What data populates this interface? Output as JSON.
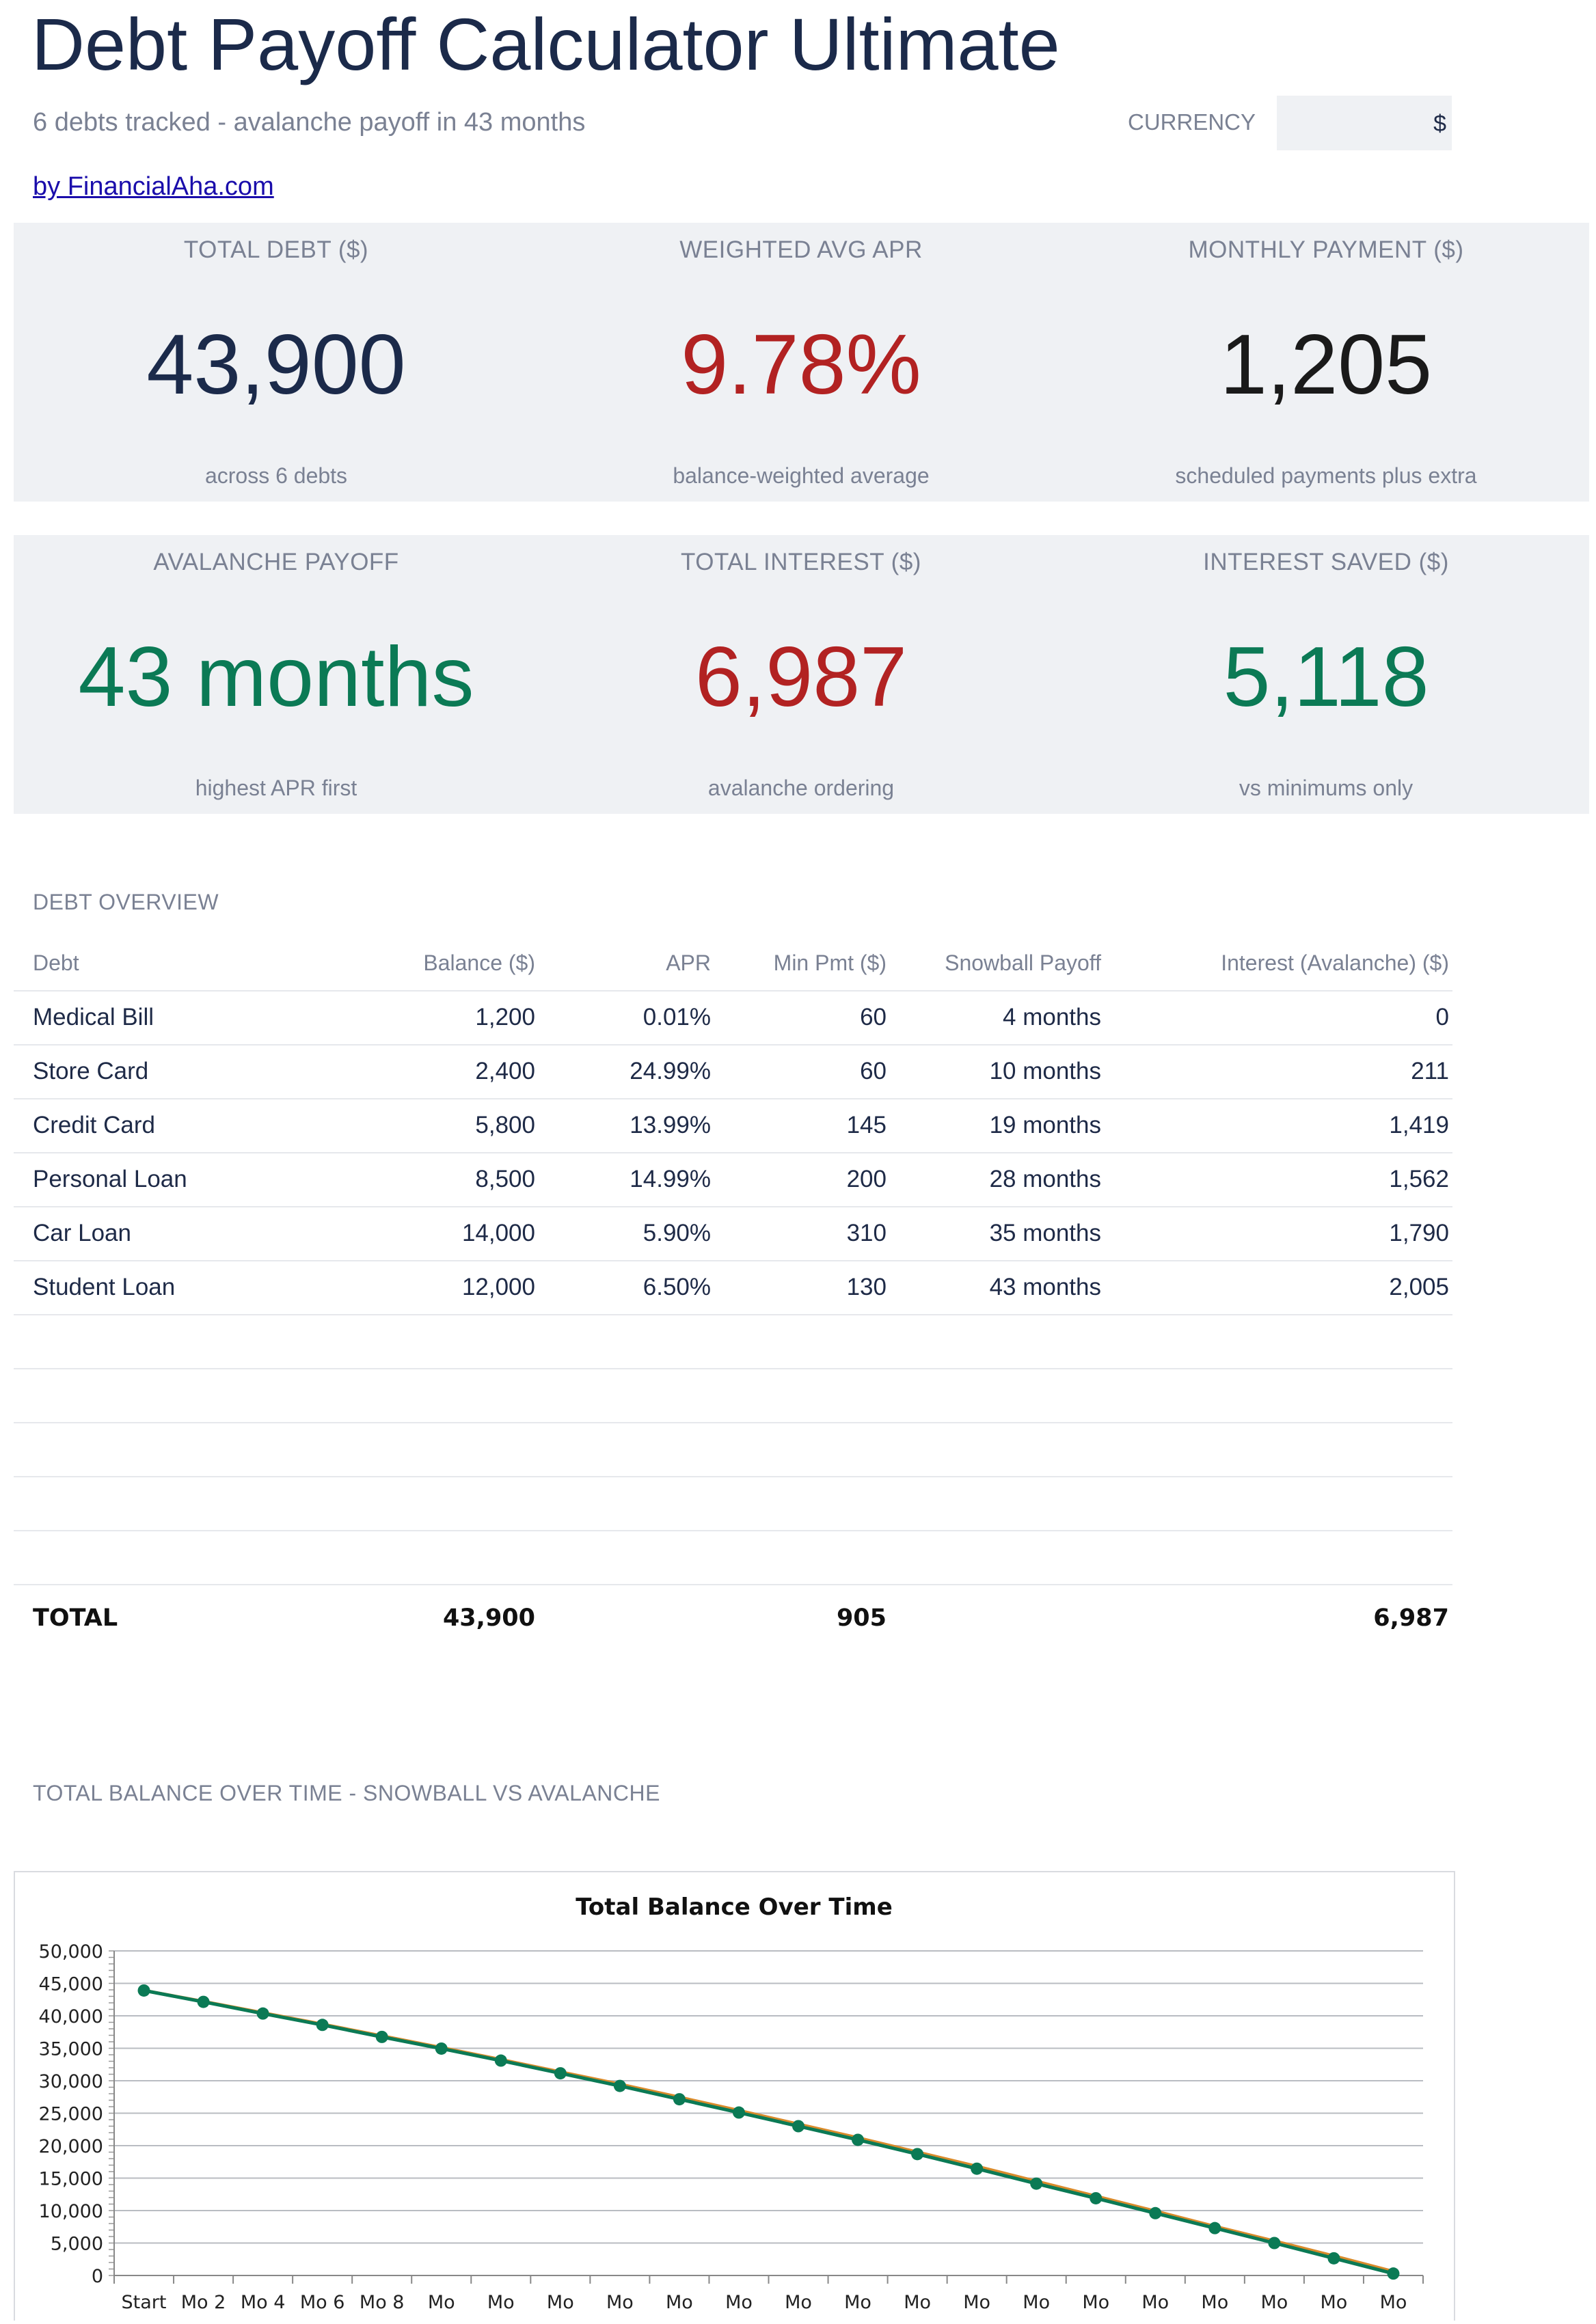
{
  "header": {
    "title": "Debt Payoff Calculator Ultimate",
    "subtitle": "6 debts tracked - avalanche payoff in 43 months",
    "currency_label": "CURRENCY",
    "currency_value": "$",
    "byline": "by FinancialAha.com"
  },
  "kpis_row1": [
    {
      "label": "TOTAL DEBT ($)",
      "value": "43,900",
      "caption": "across 6 debts"
    },
    {
      "label": "WEIGHTED AVG APR",
      "value": "9.78%",
      "caption": "balance-weighted average"
    },
    {
      "label": "MONTHLY PAYMENT ($)",
      "value": "1,205",
      "caption": "scheduled payments plus extra"
    }
  ],
  "kpis_row2": [
    {
      "label": "AVALANCHE PAYOFF",
      "value": "43 months",
      "caption": "highest APR first"
    },
    {
      "label": "TOTAL INTEREST ($)",
      "value": "6,987",
      "caption": "avalanche ordering"
    },
    {
      "label": "INTEREST SAVED ($)",
      "value": "5,118",
      "caption": "vs minimums only"
    }
  ],
  "debt_overview": {
    "section_label": "DEBT OVERVIEW",
    "columns": [
      "Debt",
      "Balance ($)",
      "APR",
      "Min Pmt ($)",
      "Snowball Payoff",
      "Interest (Avalanche) ($)"
    ],
    "rows": [
      [
        "Medical Bill",
        "1,200",
        "0.01%",
        "60",
        "4 months",
        "0"
      ],
      [
        "Store Card",
        "2,400",
        "24.99%",
        "60",
        "10 months",
        "211"
      ],
      [
        "Credit Card",
        "5,800",
        "13.99%",
        "145",
        "19 months",
        "1,419"
      ],
      [
        "Personal Loan",
        "8,500",
        "14.99%",
        "200",
        "28 months",
        "1,562"
      ],
      [
        "Car Loan",
        "14,000",
        "5.90%",
        "310",
        "35 months",
        "1,790"
      ],
      [
        "Student Loan",
        "12,000",
        "6.50%",
        "130",
        "43 months",
        "2,005"
      ]
    ],
    "total": {
      "label": "TOTAL",
      "balance": "43,900",
      "min_pmt": "905",
      "interest": "6,987"
    }
  },
  "chart_section_label": "TOTAL BALANCE OVER TIME - SNOWBALL VS AVALANCHE",
  "chart_data": {
    "type": "line",
    "title": "Total Balance Over Time",
    "xlabel": "",
    "ylabel": "",
    "ylim": [
      0,
      50000
    ],
    "yticks": [
      "0",
      "5,000",
      "10,000",
      "15,000",
      "20,000",
      "25,000",
      "30,000",
      "35,000",
      "40,000",
      "45,000",
      "50,000"
    ],
    "categories": [
      "Start",
      "Mo 2",
      "Mo 4",
      "Mo 6",
      "Mo 8",
      "Mo",
      "Mo",
      "Mo",
      "Mo",
      "Mo",
      "Mo",
      "Mo",
      "Mo",
      "Mo",
      "Mo",
      "Mo",
      "Mo",
      "Mo",
      "Mo",
      "Mo",
      "Mo",
      "Mo"
    ],
    "grid": true,
    "series": [
      {
        "color": "#d98b2b",
        "values": [
          43900,
          42200,
          40450,
          38700,
          36900,
          35100,
          33250,
          31350,
          29450,
          27450,
          25400,
          23300,
          21200,
          19000,
          16800,
          14500,
          12200,
          9900,
          7550,
          5300,
          3000,
          600
        ]
      },
      {
        "color": "#0b7a55",
        "values": [
          43900,
          42150,
          40350,
          38600,
          36750,
          34950,
          33100,
          31150,
          29200,
          27150,
          25100,
          23000,
          20900,
          18700,
          16450,
          14150,
          11900,
          9600,
          7300,
          5000,
          2650,
          300
        ]
      }
    ]
  }
}
